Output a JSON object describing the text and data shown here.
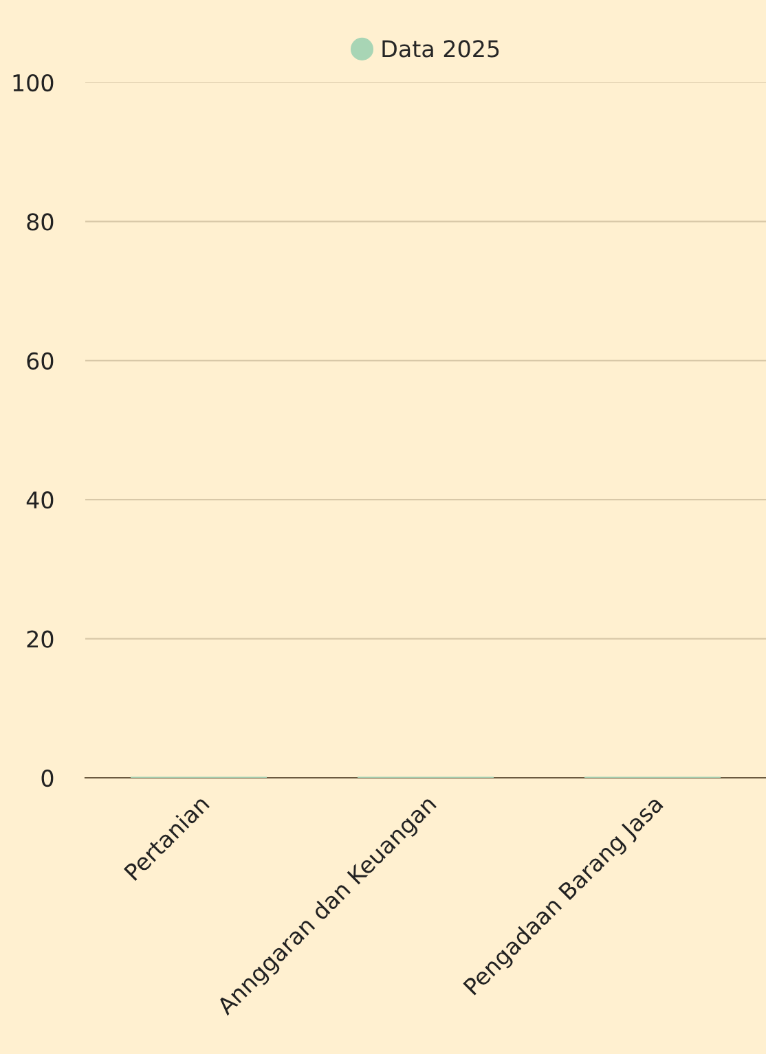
{
  "chart_data": {
    "type": "bar",
    "categories": [
      "Pertanian",
      "Annggaran dan Keuangan",
      "Pengadaan Barang Jasa"
    ],
    "series": [
      {
        "name": "Data 2025",
        "color": "#a8d5b5",
        "values": [
          0,
          0,
          0
        ]
      }
    ],
    "ylim": [
      0,
      100
    ],
    "yticks": [
      0,
      20,
      40,
      60,
      80,
      100
    ],
    "grid": "y",
    "legend": "top"
  }
}
